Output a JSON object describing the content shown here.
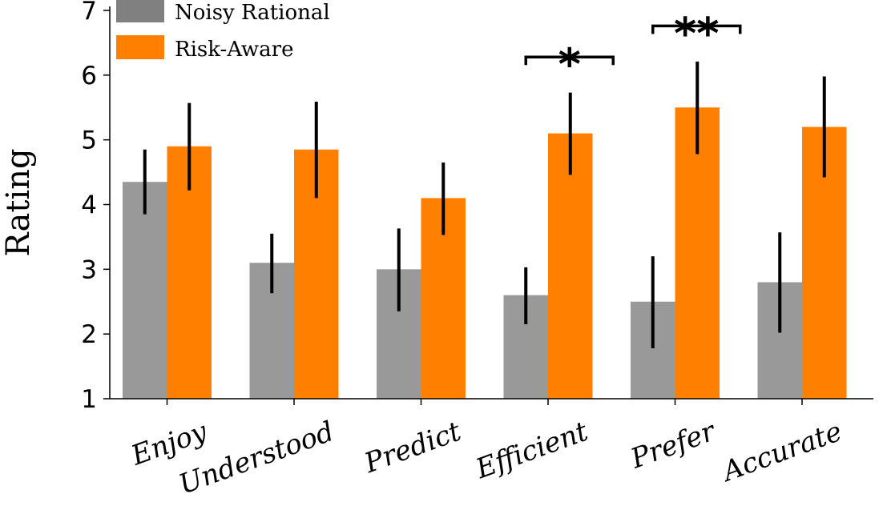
{
  "chart_data": {
    "type": "bar",
    "ylabel": "Rating",
    "ylim": [
      1,
      7
    ],
    "yticks": [
      "1",
      "2",
      "3",
      "4",
      "5",
      "6",
      "7"
    ],
    "categories": [
      "Enjoy",
      "Understood",
      "Predict",
      "Efficient",
      "Prefer",
      "Accurate"
    ],
    "series": [
      {
        "name": "Noisy Rational",
        "color": "#999999",
        "legend_color": "#808080",
        "values": [
          4.35,
          3.1,
          3.0,
          2.6,
          2.5,
          2.8
        ],
        "err_low": [
          3.85,
          2.63,
          2.35,
          2.15,
          1.78,
          2.02
        ],
        "err_high": [
          4.85,
          3.55,
          3.63,
          3.03,
          3.2,
          3.57
        ]
      },
      {
        "name": "Risk-Aware",
        "color": "#ff8000",
        "legend_color": "#ff8000",
        "values": [
          4.9,
          4.85,
          4.1,
          5.1,
          5.5,
          5.2
        ],
        "err_low": [
          4.22,
          4.1,
          3.53,
          4.46,
          4.78,
          4.42
        ],
        "err_high": [
          5.57,
          5.59,
          4.65,
          5.73,
          6.21,
          5.98
        ]
      }
    ],
    "significance": [
      {
        "category": "Efficient",
        "label": "*"
      },
      {
        "category": "Prefer",
        "label": "**"
      }
    ],
    "legend_position": "top-left",
    "grid": false
  }
}
